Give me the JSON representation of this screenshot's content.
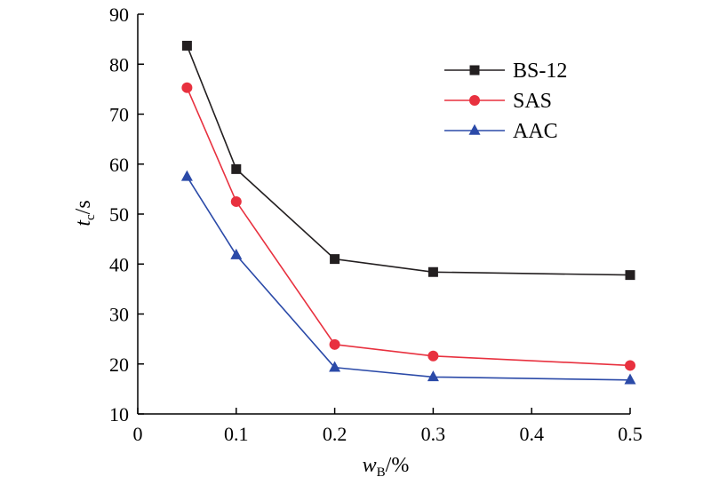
{
  "chart_data": {
    "type": "line",
    "xlabel": {
      "main": "w",
      "sub": "B",
      "unit": "/%"
    },
    "ylabel": {
      "main": "t",
      "sub": "c",
      "unit": "/s"
    },
    "xlim": [
      0,
      0.5
    ],
    "ylim": [
      10,
      90
    ],
    "xticks": [
      "0",
      "0.1",
      "0.2",
      "0.3",
      "0.4",
      "0.5"
    ],
    "yticks": [
      "10",
      "20",
      "30",
      "40",
      "50",
      "60",
      "70",
      "80",
      "90"
    ],
    "grid": false,
    "legend_position": "top-right",
    "series": [
      {
        "name": "BS-12",
        "color": "#231f20",
        "marker": "square",
        "x": [
          0.05,
          0.1,
          0.2,
          0.3,
          0.5
        ],
        "values": [
          83.7,
          59.0,
          41.0,
          38.4,
          37.8
        ]
      },
      {
        "name": "SAS",
        "color": "#e8313f",
        "marker": "circle",
        "x": [
          0.05,
          0.1,
          0.2,
          0.3,
          0.5
        ],
        "values": [
          75.3,
          52.5,
          23.9,
          21.6,
          19.7
        ]
      },
      {
        "name": "AAC",
        "color": "#2b4aa8",
        "marker": "triangle",
        "x": [
          0.05,
          0.1,
          0.2,
          0.3,
          0.5
        ],
        "values": [
          57.5,
          41.8,
          19.3,
          17.4,
          16.8
        ]
      }
    ]
  }
}
